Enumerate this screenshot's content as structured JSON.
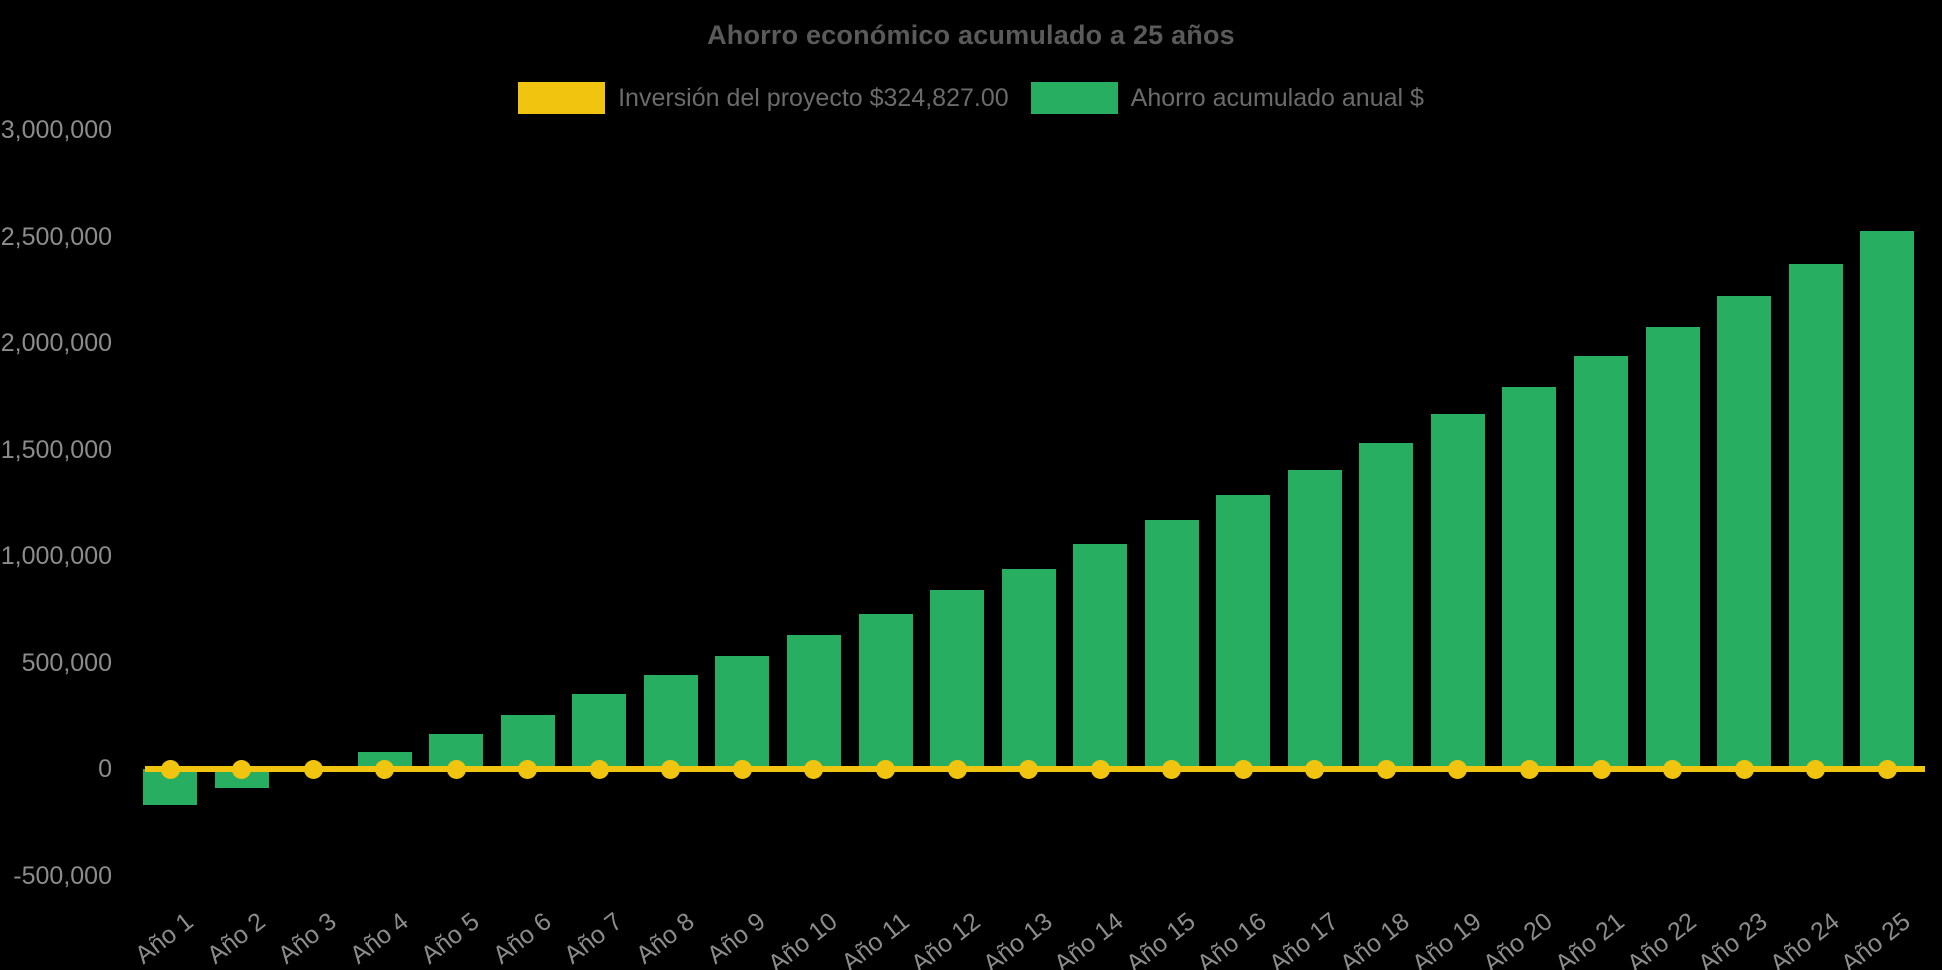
{
  "chart_data": {
    "type": "bar",
    "title": "Ahorro económico acumulado a 25 años",
    "categories": [
      "Año 1",
      "Año 2",
      "Año 3",
      "Año 4",
      "Año 5",
      "Año 6",
      "Año 7",
      "Año 8",
      "Año 9",
      "Año 10",
      "Año 11",
      "Año 12",
      "Año 13",
      "Año 14",
      "Año 15",
      "Año 16",
      "Año 17",
      "Año 18",
      "Año 19",
      "Año 20",
      "Año 21",
      "Año 22",
      "Año 23",
      "Año 24",
      "Año 25"
    ],
    "series": [
      {
        "name": "Ahorro acumulado anual $",
        "type": "bar",
        "color": "#27AE60",
        "values": [
          -170000,
          -90000,
          -5000,
          80000,
          165000,
          255000,
          350000,
          440000,
          530000,
          630000,
          730000,
          840000,
          940000,
          1055000,
          1170000,
          1285000,
          1405000,
          1530000,
          1665000,
          1795000,
          1940000,
          2075000,
          2220000,
          2370000,
          2525000
        ]
      },
      {
        "name": "Inversión del proyecto $324,827.00",
        "type": "line",
        "color": "#F1C40F",
        "values": [
          0,
          0,
          0,
          0,
          0,
          0,
          0,
          0,
          0,
          0,
          0,
          0,
          0,
          0,
          0,
          0,
          0,
          0,
          0,
          0,
          0,
          0,
          0,
          0,
          0
        ]
      }
    ],
    "investment_amount_shown_in_legend": "$324,827.00",
    "y_ticks": [
      {
        "label": "3,000,000",
        "value": 3000000
      },
      {
        "label": "2,500,000",
        "value": 2500000
      },
      {
        "label": "2,000,000",
        "value": 2000000
      },
      {
        "label": "1,500,000",
        "value": 1500000
      },
      {
        "label": "1,000,000",
        "value": 1000000
      },
      {
        "label": "500,000",
        "value": 500000
      },
      {
        "label": "0",
        "value": 0
      },
      {
        "label": "-500,000",
        "value": -500000
      }
    ],
    "ylim": [
      -500000,
      3000000
    ],
    "xlabel": "",
    "ylabel": "",
    "grid": false,
    "legend_position": "top-center",
    "background_color": "#000000",
    "title_color": "#5a5a5a",
    "tick_color": "#8c8c8c",
    "legend": [
      {
        "label": "Inversión del proyecto $324,827.00",
        "color": "#F1C40F"
      },
      {
        "label": "Ahorro acumulado anual $",
        "color": "#27AE60"
      }
    ]
  }
}
